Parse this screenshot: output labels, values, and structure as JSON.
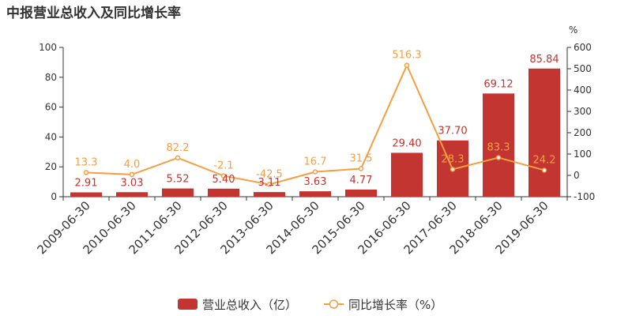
{
  "chart_data": {
    "type": "bar",
    "title": "中报营业总收入及同比增长率",
    "categories": [
      "2009-06-30",
      "2010-06-30",
      "2011-06-30",
      "2012-06-30",
      "2013-06-30",
      "2014-06-30",
      "2015-06-30",
      "2016-06-30",
      "2017-06-30",
      "2018-06-30",
      "2019-06-30"
    ],
    "series": [
      {
        "name": "营业总收入（亿）",
        "type": "bar",
        "axis": "left",
        "color": "#c23531",
        "values": [
          2.91,
          3.03,
          5.52,
          5.4,
          3.11,
          3.63,
          4.77,
          29.4,
          37.7,
          69.12,
          85.84
        ],
        "labels": [
          "2.91",
          "3.03",
          "5.52",
          "5.40",
          "3.11",
          "3.63",
          "4.77",
          "29.40",
          "37.70",
          "69.12",
          "85.84"
        ]
      },
      {
        "name": "同比增长率（%）",
        "type": "line",
        "axis": "right",
        "color": "#f49f42",
        "values": [
          13.3,
          4.0,
          82.2,
          -2.1,
          -42.5,
          16.7,
          31.5,
          516.3,
          28.3,
          83.3,
          24.2
        ],
        "labels": [
          "13.3",
          "4.0",
          "82.2",
          "-2.1",
          "-42.5",
          "16.7",
          "31.5",
          "516.3",
          "28.3",
          "83.3",
          "24.2"
        ]
      }
    ],
    "y_left": {
      "ylim": [
        0,
        100
      ],
      "ticks": [
        "0",
        "20",
        "40",
        "60",
        "80",
        "100"
      ]
    },
    "y_right": {
      "ylim": [
        -100,
        600
      ],
      "ticks": [
        "-100",
        "0",
        "100",
        "200",
        "300",
        "400",
        "500",
        "600"
      ],
      "unit": "%"
    },
    "grid": false,
    "legend_position": "bottom-center"
  }
}
